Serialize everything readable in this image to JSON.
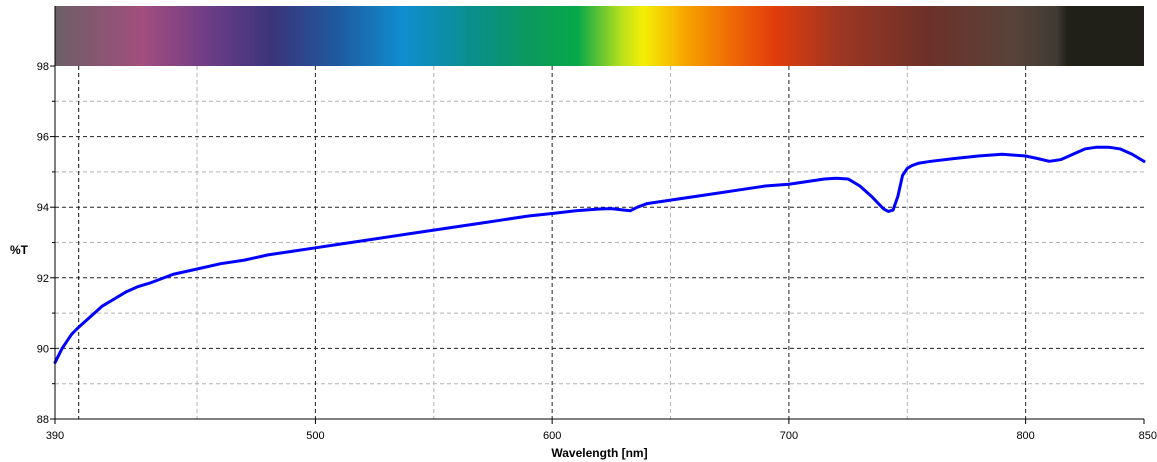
{
  "chart_data": {
    "type": "line",
    "title": "",
    "xlabel": "Wavelength [nm]",
    "ylabel": "%T",
    "xlim": [
      390,
      850
    ],
    "ylim": [
      88,
      98
    ],
    "x_major_ticks": [
      390,
      500,
      600,
      700,
      800,
      850
    ],
    "x_major_tick_labels": [
      "390",
      "500",
      "600",
      "700",
      "800",
      "850"
    ],
    "x_minor_gridlines": [
      400,
      450,
      550,
      650,
      750
    ],
    "x_major_gridlines": [
      400,
      500,
      600,
      700,
      800
    ],
    "y_major_ticks": [
      88,
      90,
      92,
      94,
      96,
      98
    ],
    "y_major_tick_labels": [
      "88",
      "90",
      "92",
      "94",
      "96",
      "98"
    ],
    "y_minor_gridlines": [
      89,
      91,
      93,
      95,
      97
    ],
    "grid": true,
    "spectrum_bar": true,
    "series": [
      {
        "color": "#0000ff",
        "x": [
          390,
          393,
          397,
          400,
          405,
          410,
          415,
          420,
          425,
          430,
          440,
          450,
          460,
          470,
          480,
          490,
          500,
          510,
          520,
          530,
          540,
          550,
          560,
          570,
          580,
          590,
          600,
          610,
          620,
          625,
          630,
          633,
          636,
          640,
          650,
          660,
          670,
          680,
          690,
          700,
          705,
          710,
          715,
          720,
          725,
          730,
          735,
          740,
          742,
          744,
          746,
          748,
          750,
          752,
          755,
          760,
          770,
          780,
          790,
          800,
          805,
          810,
          815,
          820,
          825,
          830,
          835,
          840,
          845,
          850
        ],
        "values": [
          89.6,
          90.0,
          90.4,
          90.6,
          90.9,
          91.2,
          91.4,
          91.6,
          91.75,
          91.85,
          92.1,
          92.25,
          92.4,
          92.5,
          92.65,
          92.75,
          92.85,
          92.95,
          93.05,
          93.15,
          93.25,
          93.35,
          93.45,
          93.55,
          93.65,
          93.75,
          93.82,
          93.9,
          93.95,
          93.96,
          93.92,
          93.9,
          94.0,
          94.1,
          94.2,
          94.3,
          94.4,
          94.5,
          94.6,
          94.65,
          94.7,
          94.75,
          94.8,
          94.82,
          94.8,
          94.6,
          94.3,
          93.95,
          93.88,
          93.92,
          94.3,
          94.9,
          95.1,
          95.18,
          95.25,
          95.3,
          95.38,
          95.45,
          95.5,
          95.45,
          95.38,
          95.3,
          95.35,
          95.5,
          95.65,
          95.7,
          95.7,
          95.65,
          95.5,
          95.3
        ]
      }
    ]
  }
}
